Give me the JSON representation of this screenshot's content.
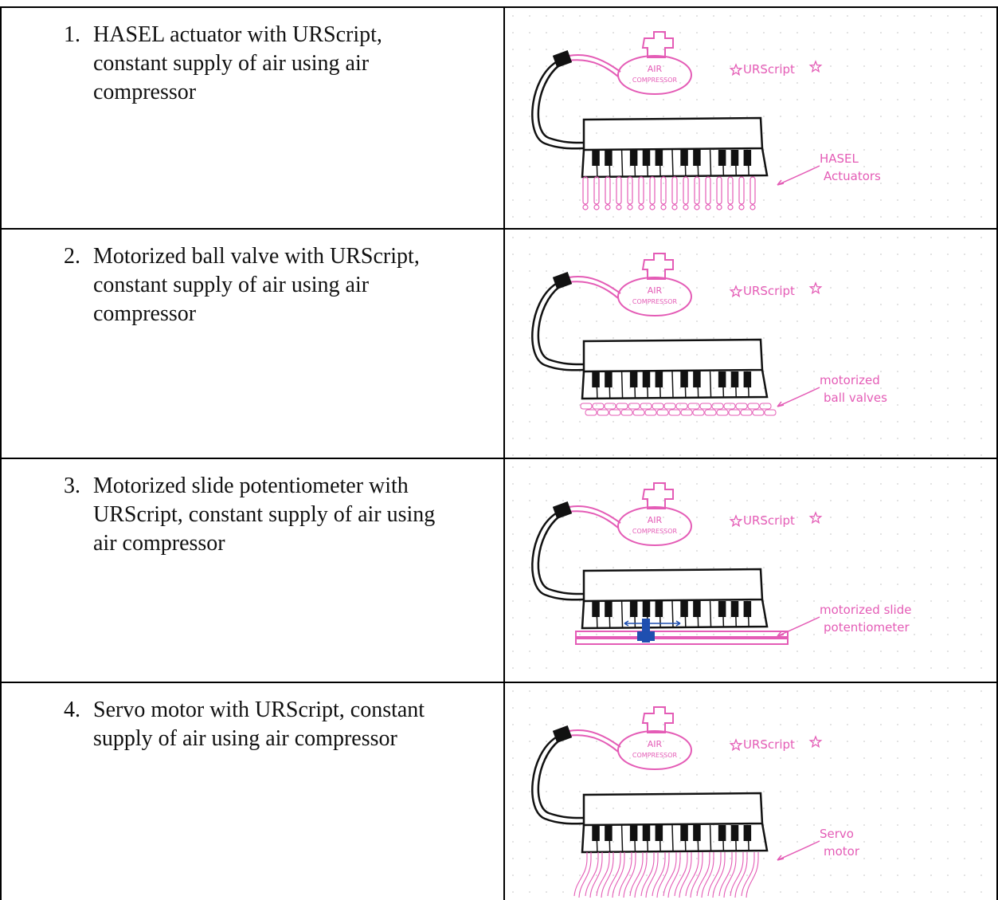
{
  "table": {
    "rows": [
      {
        "number": "1.",
        "lines": [
          "HASEL actuator with URScript,",
          "constant supply of air using air",
          "compressor"
        ],
        "sketch": {
          "compressor": [
            "AIR",
            "COMPRESSOR"
          ],
          "script": "URScript",
          "part": [
            "HASEL",
            "Actuators"
          ]
        }
      },
      {
        "number": "2.",
        "lines": [
          "Motorized ball valve with URScript,",
          "constant supply of air using air",
          "compressor"
        ],
        "sketch": {
          "compressor": [
            "AIR",
            "COMPRESSOR"
          ],
          "script": "URScript",
          "part": [
            "motorized",
            "ball valves"
          ]
        }
      },
      {
        "number": "3.",
        "lines": [
          "Motorized slide potentiometer with",
          "URScript, constant supply of air using",
          "air compressor"
        ],
        "sketch": {
          "compressor": [
            "AIR",
            "COMPRESSOR"
          ],
          "script": "URScript",
          "part": [
            "motorized slide",
            "potentiometer"
          ]
        }
      },
      {
        "number": "4.",
        "lines": [
          "Servo motor with URScript, constant",
          "supply of air using air compressor"
        ],
        "sketch": {
          "compressor": [
            "AIR",
            "COMPRESSOR"
          ],
          "script": "URScript",
          "part": [
            "Servo",
            "motor"
          ]
        }
      }
    ]
  }
}
